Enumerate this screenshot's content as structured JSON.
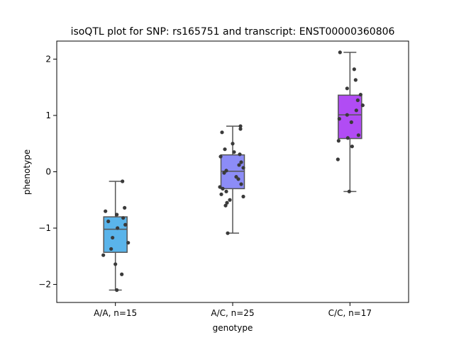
{
  "chart_data": {
    "type": "box",
    "title": "isoQTL plot for SNP: rs165751 and transcript: ENST00000360806",
    "xlabel": "genotype",
    "ylabel": "phenotype",
    "ylim": [
      -2.32,
      2.32
    ],
    "yticks": [
      -2,
      -1,
      0,
      1,
      2
    ],
    "ytick_labels": [
      "−2",
      "−1",
      "0",
      "1",
      "2"
    ],
    "grid": false,
    "legend": "none",
    "point_color": "#3a3a3a",
    "box_edge_color": "#555555",
    "categories": [
      "A/A, n=15",
      "A/C, n=25",
      "C/C, n=17"
    ],
    "groups": [
      {
        "label": "A/A, n=15",
        "color": "#5ab4ea",
        "whisker_low": -2.1,
        "q1": -1.43,
        "median": -1.02,
        "q3": -0.8,
        "whisker_high": -0.17,
        "points": [
          [
            0.1,
            -0.17
          ],
          [
            -0.14,
            -0.7
          ],
          [
            0.02,
            -0.76
          ],
          [
            0.13,
            -0.64
          ],
          [
            -0.1,
            -0.88
          ],
          [
            0.11,
            -0.82
          ],
          [
            0.03,
            -1.0
          ],
          [
            0.14,
            -0.94
          ],
          [
            -0.04,
            -1.17
          ],
          [
            0.18,
            -1.26
          ],
          [
            -0.06,
            -1.37
          ],
          [
            -0.17,
            -1.48
          ],
          [
            0.0,
            -1.64
          ],
          [
            0.09,
            -1.82
          ],
          [
            0.02,
            -2.1
          ]
        ]
      },
      {
        "label": "A/C, n=25",
        "color": "#8c8cf7",
        "whisker_low": -1.09,
        "q1": -0.3,
        "median": 0.01,
        "q3": 0.3,
        "whisker_high": 0.81,
        "points": [
          [
            0.11,
            0.81
          ],
          [
            0.11,
            0.76
          ],
          [
            -0.15,
            0.7
          ],
          [
            0.0,
            0.5
          ],
          [
            -0.11,
            0.4
          ],
          [
            0.02,
            0.35
          ],
          [
            0.1,
            0.31
          ],
          [
            -0.17,
            0.27
          ],
          [
            0.12,
            0.17
          ],
          [
            0.09,
            0.12
          ],
          [
            0.15,
            0.07
          ],
          [
            -0.09,
            0.02
          ],
          [
            -0.12,
            -0.02
          ],
          [
            0.05,
            -0.09
          ],
          [
            0.08,
            -0.13
          ],
          [
            0.12,
            -0.22
          ],
          [
            -0.18,
            -0.27
          ],
          [
            -0.14,
            -0.3
          ],
          [
            -0.09,
            -0.35
          ],
          [
            -0.16,
            -0.4
          ],
          [
            0.15,
            -0.44
          ],
          [
            -0.04,
            -0.5
          ],
          [
            -0.08,
            -0.55
          ],
          [
            -0.1,
            -0.6
          ],
          [
            -0.07,
            -1.09
          ]
        ]
      },
      {
        "label": "C/C, n=17",
        "color": "#b14cf4",
        "whisker_low": -0.35,
        "q1": 0.59,
        "median": 1.01,
        "q3": 1.36,
        "whisker_high": 2.12,
        "points": [
          [
            -0.14,
            2.12
          ],
          [
            0.06,
            1.82
          ],
          [
            0.08,
            1.63
          ],
          [
            -0.04,
            1.48
          ],
          [
            0.15,
            1.37
          ],
          [
            0.11,
            1.27
          ],
          [
            0.18,
            1.18
          ],
          [
            0.09,
            1.09
          ],
          [
            -0.04,
            1.01
          ],
          [
            -0.15,
            0.94
          ],
          [
            0.02,
            0.88
          ],
          [
            0.12,
            0.65
          ],
          [
            -0.03,
            0.6
          ],
          [
            -0.16,
            0.55
          ],
          [
            0.03,
            0.45
          ],
          [
            -0.17,
            0.22
          ],
          [
            -0.01,
            -0.35
          ]
        ]
      }
    ]
  }
}
